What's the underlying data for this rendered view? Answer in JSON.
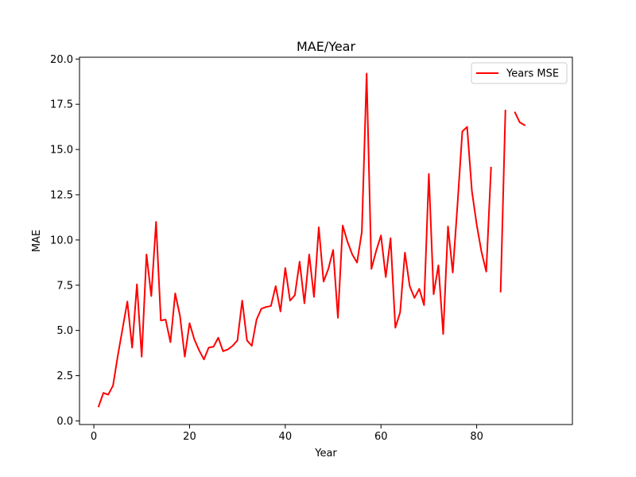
{
  "chart_data": {
    "type": "line",
    "title": "MAE/Year",
    "xlabel": "Year",
    "ylabel": "MAE",
    "xlim": [
      -3,
      100
    ],
    "ylim": [
      -0.2,
      20.1
    ],
    "xticks": [
      0,
      20,
      40,
      60,
      80
    ],
    "yticks": [
      0.0,
      2.5,
      5.0,
      7.5,
      10.0,
      12.5,
      15.0,
      17.5,
      20.0
    ],
    "xtick_labels": [
      "0",
      "20",
      "40",
      "60",
      "80"
    ],
    "ytick_labels": [
      "0.0",
      "2.5",
      "5.0",
      "7.5",
      "10.0",
      "12.5",
      "15.0",
      "17.5",
      "20.0"
    ],
    "grid": false,
    "legend": {
      "position": "top-right"
    },
    "series": [
      {
        "name": "Years MSE",
        "color": "#ff0000",
        "x": [
          1,
          2,
          3,
          4,
          5,
          6,
          7,
          8,
          9,
          10,
          11,
          12,
          13,
          14,
          15,
          16,
          17,
          18,
          19,
          20,
          21,
          22,
          23,
          24,
          25,
          26,
          27,
          28,
          29,
          30,
          31,
          32,
          33,
          34,
          35,
          36,
          37,
          38,
          39,
          40,
          41,
          42,
          43,
          44,
          45,
          46,
          47,
          48,
          49,
          50,
          51,
          52,
          53,
          54,
          55,
          56,
          57,
          58,
          59,
          60,
          61,
          62,
          63,
          64,
          65,
          66,
          67,
          68,
          69,
          70,
          71,
          72,
          73,
          74,
          75,
          76,
          77,
          78,
          79,
          80,
          81,
          82,
          83,
          84,
          85,
          86,
          87,
          88,
          89,
          90
        ],
        "y": [
          0.8,
          1.55,
          1.45,
          1.95,
          3.6,
          5.1,
          6.6,
          4.05,
          7.55,
          3.55,
          9.2,
          6.9,
          11.0,
          5.55,
          5.6,
          4.35,
          7.05,
          5.8,
          3.55,
          5.4,
          4.5,
          3.9,
          3.4,
          4.05,
          4.1,
          4.6,
          3.85,
          3.95,
          4.15,
          4.45,
          6.65,
          4.45,
          4.15,
          5.6,
          6.2,
          6.3,
          6.35,
          7.45,
          6.05,
          8.45,
          6.65,
          6.95,
          8.8,
          6.5,
          9.2,
          6.85,
          10.7,
          7.7,
          8.4,
          9.45,
          5.7,
          10.8,
          9.9,
          9.2,
          8.75,
          10.45,
          19.2,
          8.4,
          9.4,
          10.25,
          7.95,
          10.1,
          5.15,
          6.0,
          9.3,
          7.45,
          6.8,
          7.3,
          6.4,
          13.65,
          7.0,
          8.6,
          4.8,
          10.75,
          8.2,
          12.0,
          16.0,
          16.25,
          12.7,
          10.85,
          9.35,
          8.25,
          14.0,
          null,
          7.15,
          17.15,
          null,
          17.05,
          16.5,
          16.35
        ]
      }
    ]
  }
}
